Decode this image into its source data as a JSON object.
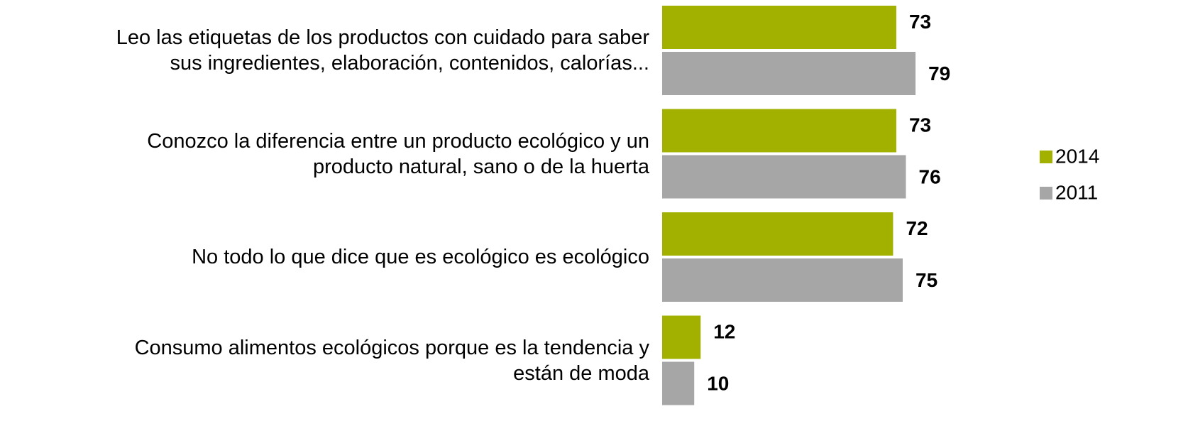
{
  "chart_data": {
    "type": "hbar",
    "categories": [
      "Leo las etiquetas de los productos con cuidado para saber\nsus ingredientes, elaboración, contenidos, calorías...",
      "Conozco la diferencia entre un producto ecológico y un\nproducto natural, sano o de la huerta",
      "No todo lo que dice que es ecológico es ecológico",
      "Consumo alimentos ecológicos porque es la tendencia y\nestán de moda"
    ],
    "series": [
      {
        "name": "2014",
        "color": "#a2b000",
        "values": [
          73,
          73,
          72,
          12
        ]
      },
      {
        "name": "2011",
        "color": "#a6a6a6",
        "values": [
          79,
          76,
          75,
          10
        ]
      }
    ],
    "xlim": [
      0,
      100
    ],
    "legend": "right"
  }
}
